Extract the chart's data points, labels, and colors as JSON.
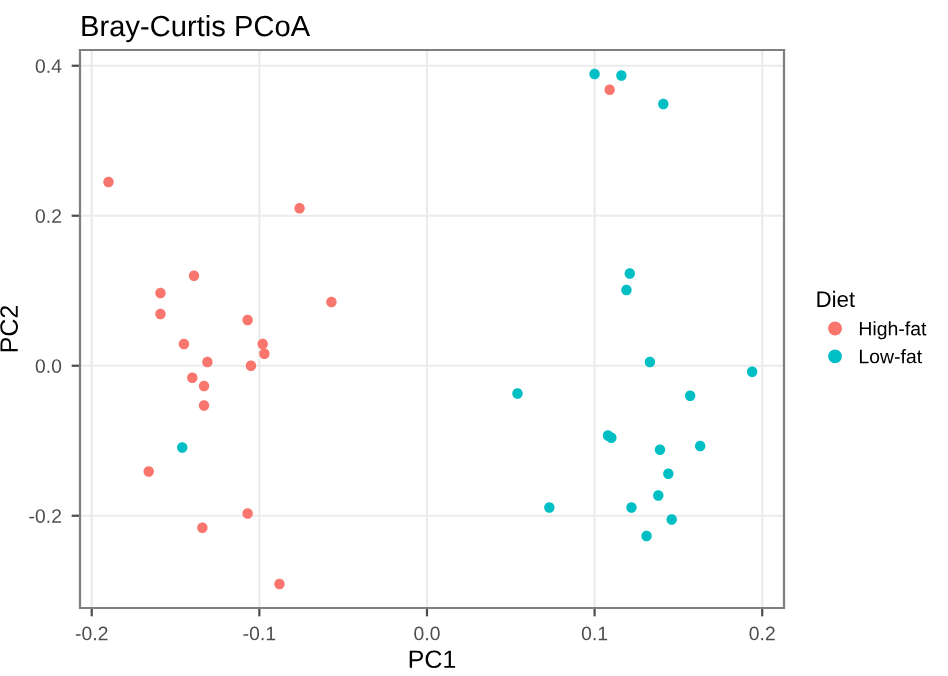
{
  "chart_data": {
    "type": "scatter",
    "title": "Bray-Curtis PCoA",
    "xlabel": "PC1",
    "ylabel": "PC2",
    "legend_title": "Diet",
    "legend": "right",
    "grid": true,
    "marker": "circle",
    "xlim": [
      -0.207,
      0.213
    ],
    "ylim": [
      -0.323,
      0.421
    ],
    "xticks": [
      -0.2,
      -0.1,
      {
        "value": 0,
        "label": "0.0"
      },
      0.1,
      0.2
    ],
    "yticks": [
      -0.2,
      {
        "value": 0,
        "label": "0.0"
      },
      0.2,
      0.4
    ],
    "series": [
      {
        "name": "High-fat",
        "color": "#f8766d",
        "x": [
          -0.19,
          -0.076,
          -0.139,
          -0.159,
          -0.159,
          -0.107,
          -0.057,
          -0.145,
          -0.098,
          -0.097,
          -0.131,
          -0.105,
          -0.14,
          -0.133,
          -0.133,
          -0.166,
          -0.134,
          -0.107,
          -0.088,
          0.109
        ],
        "values": [
          0.245,
          0.21,
          0.12,
          0.097,
          0.069,
          0.061,
          0.085,
          0.029,
          0.029,
          0.016,
          0.005,
          0,
          -0.016,
          -0.027,
          -0.053,
          -0.141,
          -0.216,
          -0.197,
          -0.291,
          0.368
        ]
      },
      {
        "name": "Low-fat",
        "color": "#00bfc4",
        "x": [
          -0.146,
          0.1,
          0.116,
          0.141,
          0.121,
          0.119,
          0.133,
          0.194,
          0.054,
          0.157,
          0.108,
          0.11,
          0.139,
          0.163,
          0.144,
          0.138,
          0.073,
          0.122,
          0.146,
          0.131
        ],
        "values": [
          -0.109,
          0.389,
          0.387,
          0.349,
          0.123,
          0.101,
          0.005,
          -0.008,
          -0.037,
          -0.04,
          -0.093,
          -0.096,
          -0.112,
          -0.107,
          -0.144,
          -0.173,
          -0.189,
          -0.189,
          -0.205,
          -0.227
        ]
      }
    ]
  }
}
